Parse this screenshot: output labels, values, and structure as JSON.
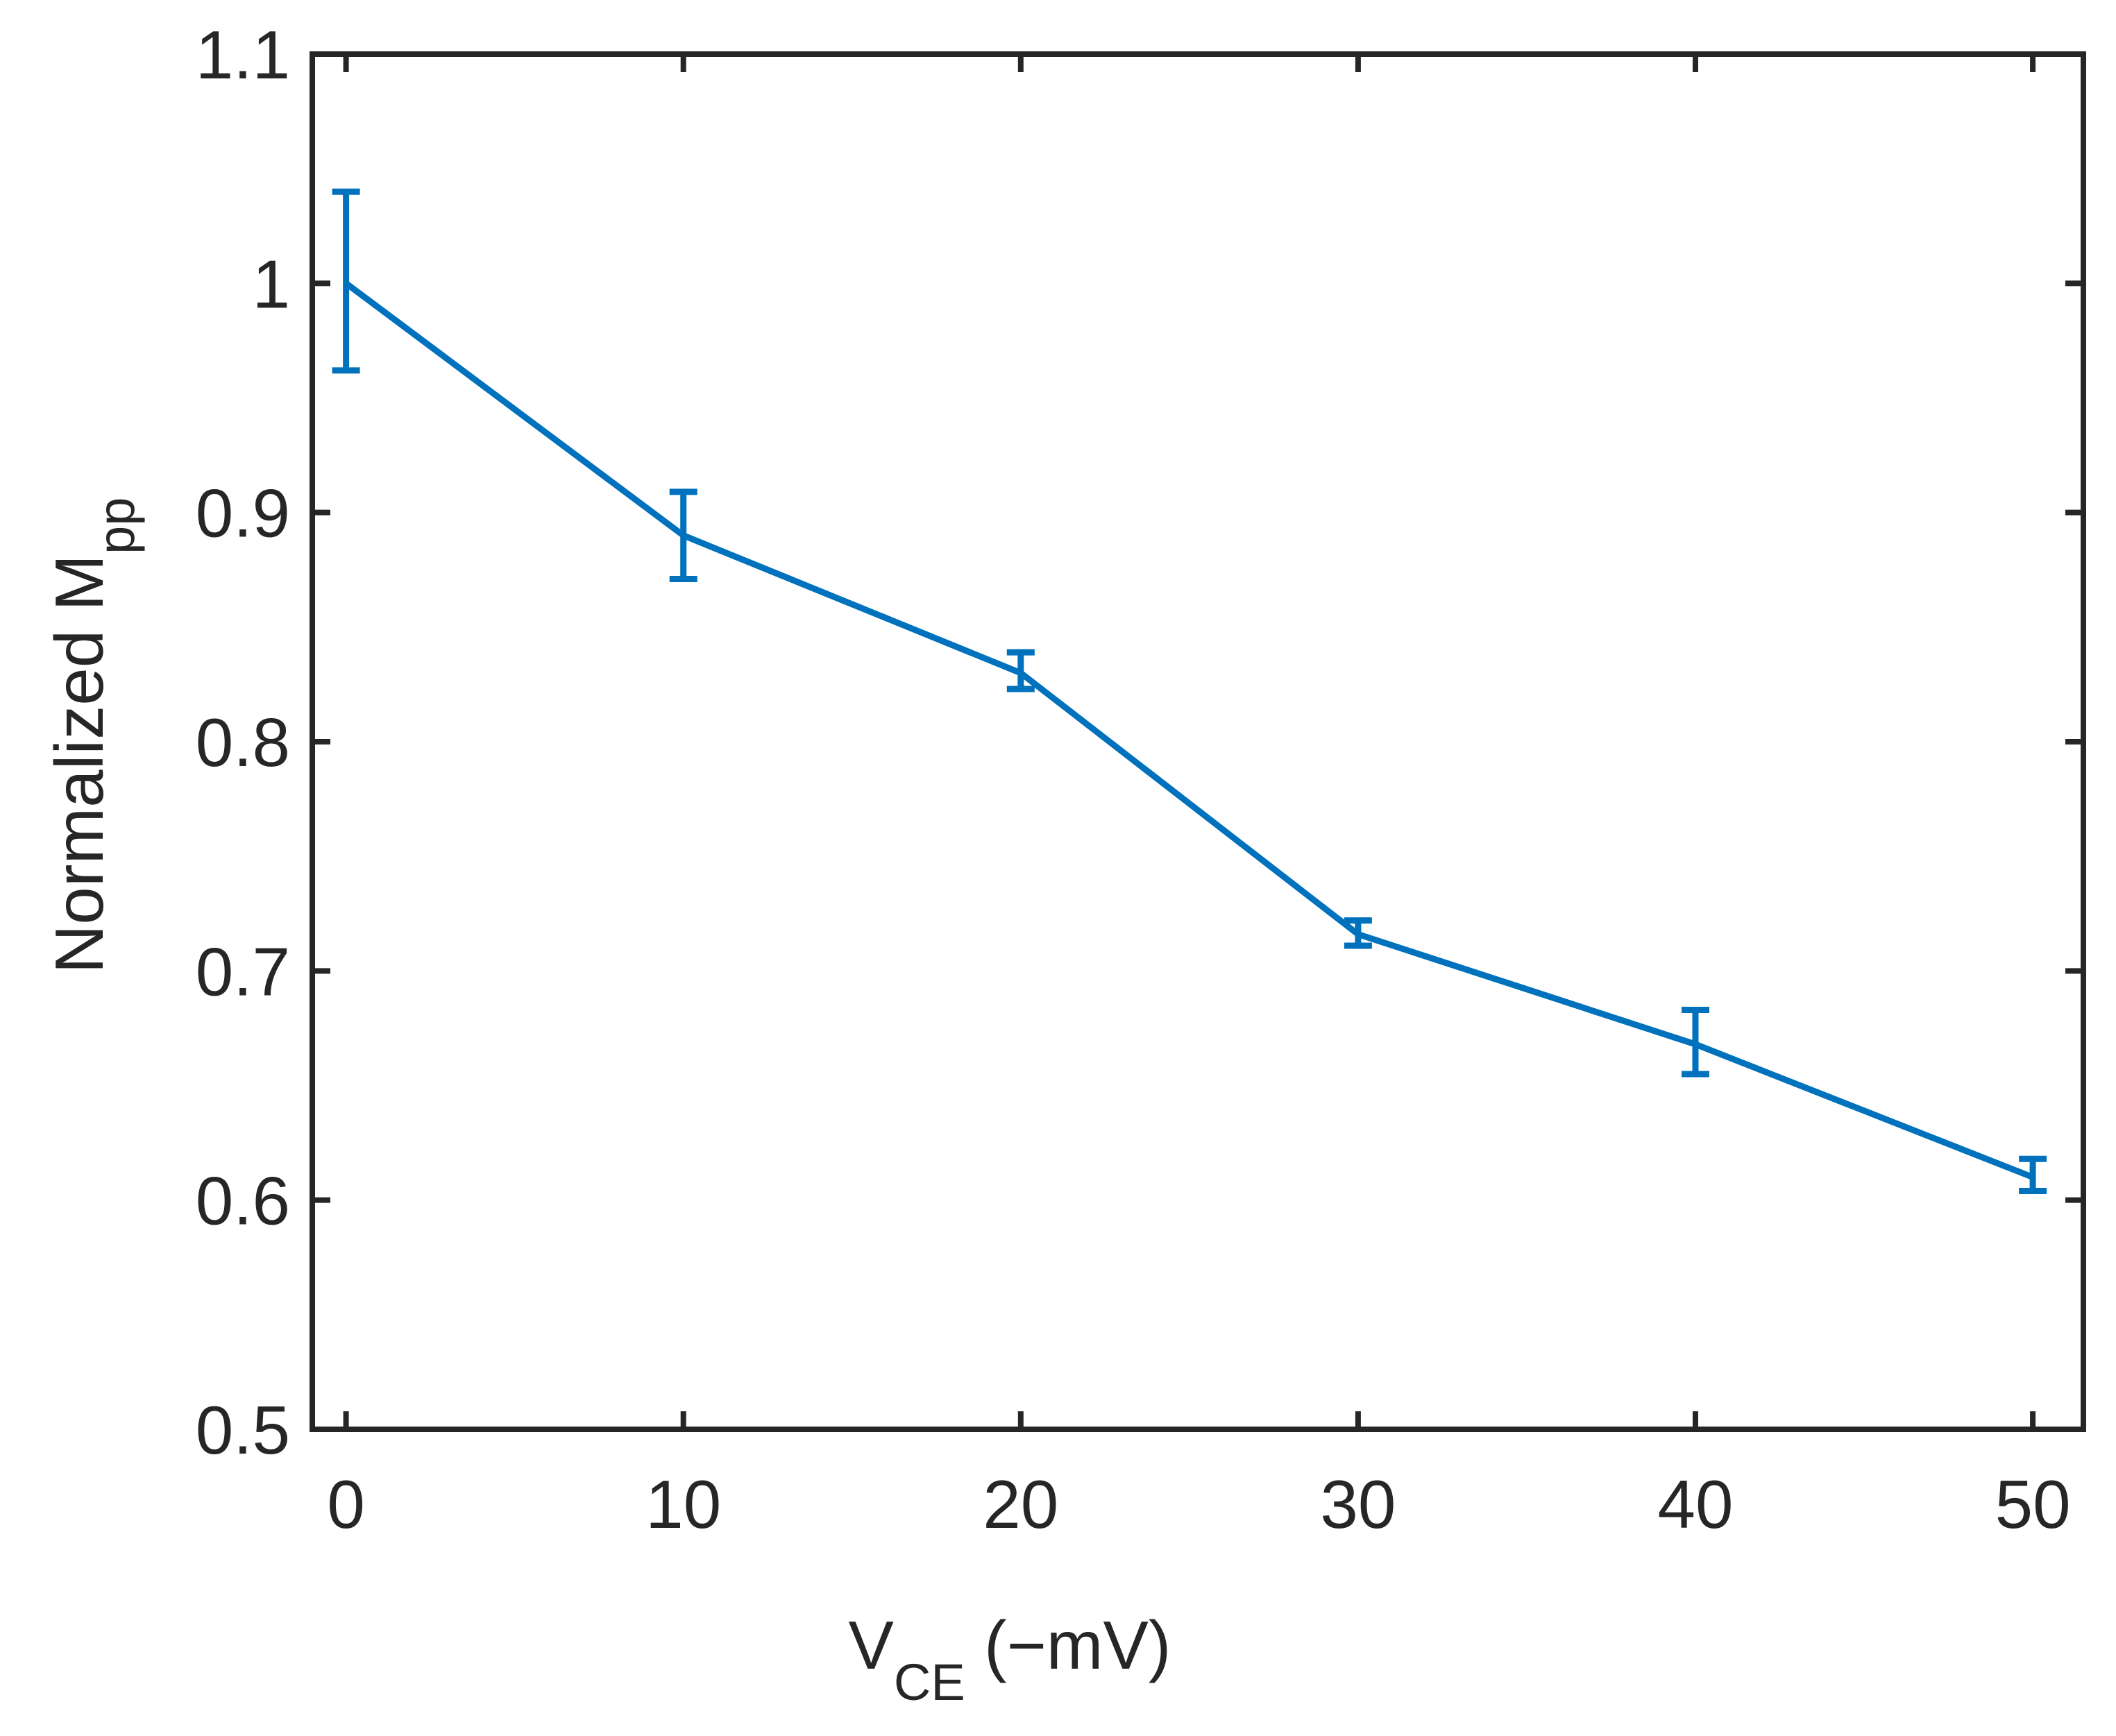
{
  "chart_data": {
    "type": "line",
    "title": "",
    "xlabel": {
      "main": "V",
      "sub": "CE",
      "suffix": " (−mV)"
    },
    "ylabel": {
      "main": "Normalized M",
      "sub": "pp"
    },
    "x": [
      0,
      10,
      20,
      30,
      40,
      50
    ],
    "series": [
      {
        "name": "Normalized Mpp",
        "values": [
          1.0,
          0.89,
          0.83,
          0.716,
          0.668,
          0.61
        ],
        "err_low": [
          0.038,
          0.019,
          0.007,
          0.005,
          0.013,
          0.006
        ],
        "err_high": [
          0.04,
          0.019,
          0.009,
          0.006,
          0.015,
          0.008
        ],
        "color": "#0072BD"
      }
    ],
    "xlim": [
      -1,
      51.5
    ],
    "ylim": [
      0.5,
      1.1
    ],
    "xticks": [
      "0",
      "10",
      "20",
      "30",
      "40",
      "50"
    ],
    "xtick_values": [
      0,
      10,
      20,
      30,
      40,
      50
    ],
    "yticks": [
      "0.5",
      "0.6",
      "0.7",
      "0.8",
      "0.9",
      "1",
      "1.1"
    ],
    "ytick_values": [
      0.5,
      0.6,
      0.7,
      0.8,
      0.9,
      1.0,
      1.1
    ],
    "grid": false,
    "legend": "none"
  },
  "colors": {
    "axis": "#262626",
    "line": "#0072BD"
  }
}
